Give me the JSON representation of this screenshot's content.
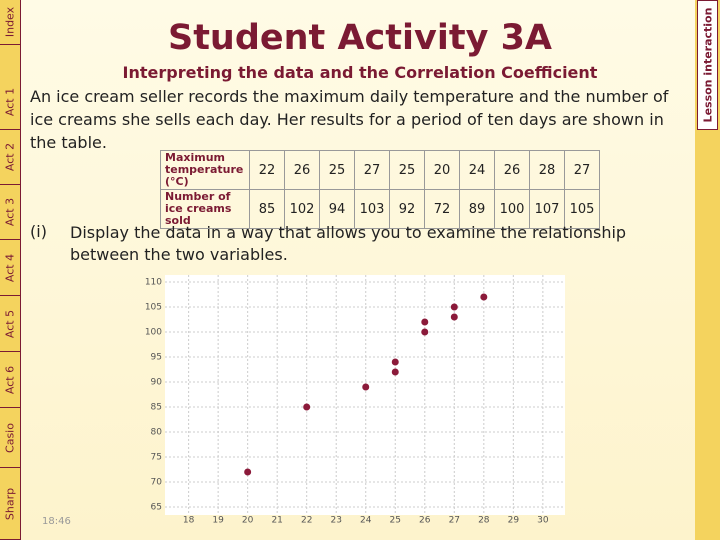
{
  "sidebar": {
    "tabs": [
      "Index",
      "Act 1",
      "Act 2",
      "Act 3",
      "Act 4",
      "Act 5",
      "Act 6",
      "Casio",
      "Sharp"
    ]
  },
  "lesson_link": "Lesson interaction",
  "title": "Student Activity 3A",
  "subtitle": "Interpreting the data and the Correlation Coefficient",
  "intro": "An ice cream seller records the maximum daily temperature and the number of ice creams she sells each day. Her results for a period of ten days are shown in the table.",
  "table": {
    "rows": [
      {
        "label": "Maximum temperature (°C)",
        "values": [
          22,
          26,
          25,
          27,
          25,
          20,
          24,
          26,
          28,
          27
        ]
      },
      {
        "label": "Number of ice creams sold",
        "values": [
          85,
          102,
          94,
          103,
          92,
          72,
          89,
          100,
          107,
          105
        ]
      }
    ]
  },
  "question": {
    "number": "(i)",
    "text": "Display the data in a way that allows you to examine the relationship between the two variables."
  },
  "graph": {
    "xlim": [
      17.2,
      30.75
    ],
    "ylim": [
      63.4,
      111.4
    ],
    "xticks": [
      18,
      19,
      20,
      21,
      22,
      23,
      24,
      25,
      26,
      27,
      28,
      29,
      30
    ],
    "yticks": [
      65,
      70,
      75,
      80,
      85,
      90,
      95,
      100,
      105,
      110
    ]
  },
  "time": "18:46"
}
